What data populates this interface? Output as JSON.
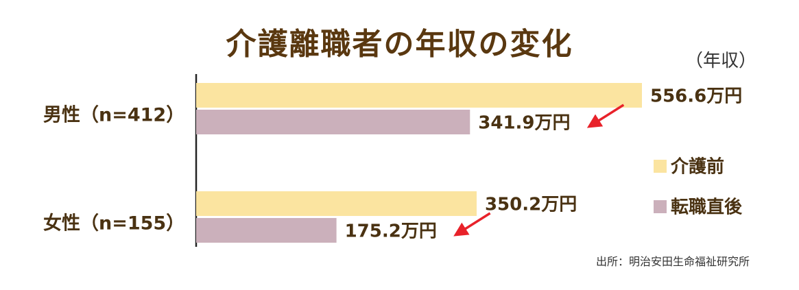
{
  "colors": {
    "before": "#fbe4a0",
    "after": "#cbb0bb",
    "text": "#4a3212",
    "arrow": "#e8222a",
    "axis": "#222222"
  },
  "chart_data": {
    "type": "bar",
    "orientation": "horizontal",
    "title": "介護離職者の年収の変化",
    "unit_label": "（年収）",
    "categories": [
      "男性（n=412）",
      "女性（n=155）"
    ],
    "series": [
      {
        "name": "介護前",
        "values": [
          556.6,
          350.2
        ],
        "labels": [
          "556.6万円",
          "350.2万円"
        ]
      },
      {
        "name": "転職直後",
        "values": [
          341.9,
          175.2
        ],
        "labels": [
          "341.9万円",
          "175.2万円"
        ]
      }
    ],
    "xlim": [
      0,
      556.6
    ],
    "legend_position": "right",
    "annotations": [
      "arrow from 介護前 label to 転職直後 label in each group"
    ],
    "source": "出所：明治安田生命福祉研究所"
  }
}
